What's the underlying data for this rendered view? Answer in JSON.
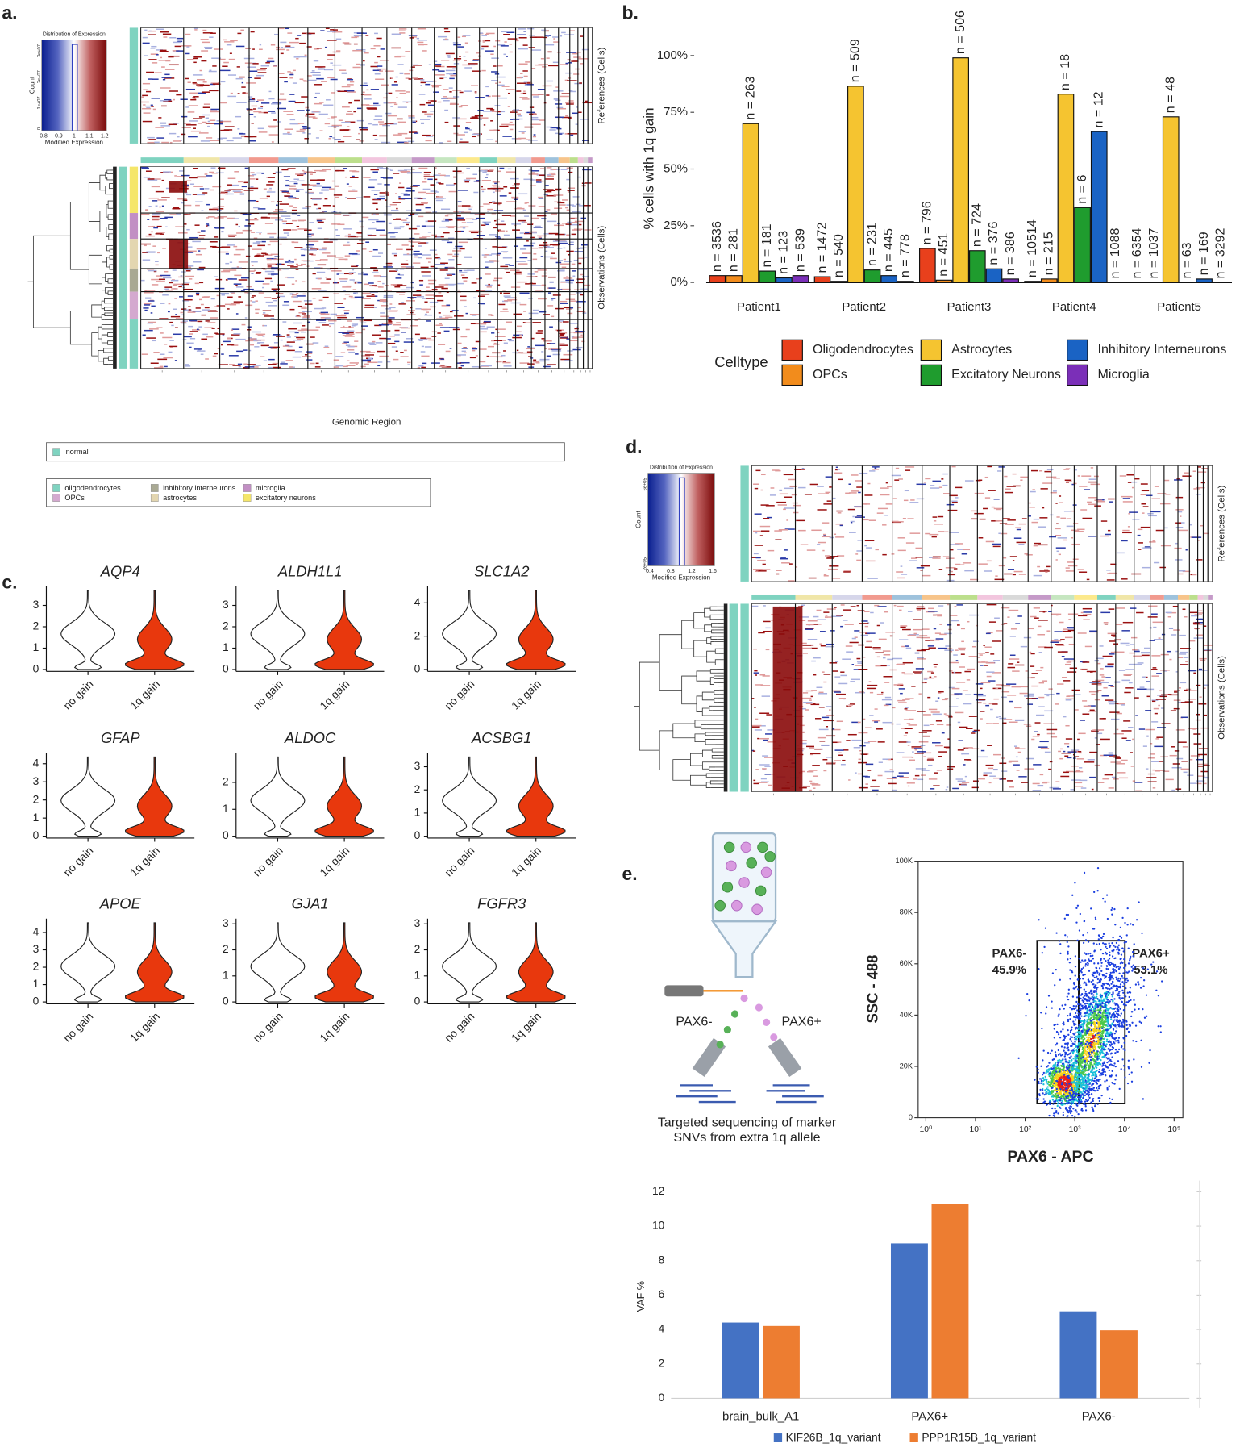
{
  "panel_labels": [
    "a.",
    "b.",
    "c.",
    "d.",
    "e."
  ],
  "heatmaps": [
    {
      "key_title": "Distribution of Expression",
      "key_ylabel": "Count",
      "key_xlabel": "Modified Expression",
      "key_xticks": [
        0.8,
        0.9,
        1,
        1.1,
        1.2
      ],
      "key_yticks": [
        "3e+07",
        "2e+07",
        "1e+07",
        "0"
      ],
      "ref_label": "References (Cells)",
      "obs_label": "Observations (Cells)",
      "xlabel": "Genomic Region"
    },
    {
      "key_title": "Distribution of Expression",
      "key_ylabel": "Count",
      "key_xlabel": "Modified Expression",
      "key_xticks": [
        0.4,
        0.8,
        1.2,
        1.6
      ],
      "key_yticks": [
        "6e+05",
        "2e+05"
      ],
      "ref_label": "References (Cells)",
      "obs_label": "Observations (Cells)"
    }
  ],
  "legends": {
    "references": {
      "names": [
        "normal"
      ],
      "colors": [
        "#7fd3c0"
      ]
    },
    "observations": {
      "names": [
        "oligodendrocytes",
        "OPCs",
        "inhibitory interneurons",
        "astrocytes",
        "microglia",
        "excitatory neurons"
      ],
      "colors": [
        "#7fd3c0",
        "#d4a9cf",
        "#a9a993",
        "#e3d6b0",
        "#c28fc4",
        "#f5e66a"
      ]
    }
  },
  "diagram": {
    "left": "PAX6-",
    "right": "PAX6+",
    "caption": [
      "Targeted sequencing of marker",
      "SNVs from extra 1q allele"
    ]
  },
  "chart_data": [
    {
      "type": "bar",
      "ylabel": "% cells with 1q gain",
      "categories": [
        "Patient1",
        "Patient2",
        "Patient3",
        "Patient4",
        "Patient5"
      ],
      "ylim": [
        0,
        100
      ],
      "yticks": [
        {
          "value": 0,
          "label": "0%"
        },
        {
          "value": 25,
          "label": "25%"
        },
        {
          "value": 50,
          "label": "50%"
        },
        {
          "value": 75,
          "label": "75%"
        },
        {
          "value": 100,
          "label": "100%"
        }
      ],
      "legend_title": "Celltype",
      "series": [
        {
          "name": "Oligodendrocytes",
          "color": "#e8401c",
          "values": [
            3,
            2.5,
            15,
            0.5,
            0
          ],
          "n_labels": [
            "n = 3536",
            "n = 1472",
            "n = 796",
            "n = 10514",
            "n = 6354"
          ]
        },
        {
          "name": "OPCs",
          "color": "#f28c1c",
          "values": [
            3,
            0.5,
            1,
            1.5,
            0
          ],
          "n_labels": [
            "n = 281",
            "n = 540",
            "n = 451",
            "n = 215",
            "n = 1037"
          ]
        },
        {
          "name": "Astrocytes",
          "color": "#f5c430",
          "values": [
            70,
            86.5,
            99,
            83,
            73
          ],
          "n_labels": [
            "n = 263",
            "n = 509",
            "n = 506",
            "n = 18",
            "n = 48"
          ]
        },
        {
          "name": "Excitatory Neurons",
          "color": "#1f9c2e",
          "values": [
            5,
            5.5,
            14,
            33,
            0
          ],
          "n_labels": [
            "n = 181",
            "n = 231",
            "n = 724",
            "n = 6",
            "n = 63"
          ]
        },
        {
          "name": "Inhibitory Interneurons",
          "color": "#1a63c4",
          "values": [
            2,
            3,
            6,
            66.5,
            1.5
          ],
          "n_labels": [
            "n = 123",
            "n = 445",
            "n = 376",
            "n = 12",
            "n = 169"
          ]
        },
        {
          "name": "Microglia",
          "color": "#7b2fb8",
          "values": [
            3,
            0.5,
            1.5,
            0,
            0
          ],
          "n_labels": [
            "n = 539",
            "n = 778",
            "n = 386",
            "n = 1088",
            "n = 3292"
          ]
        }
      ]
    },
    {
      "type": "violin",
      "categories": [
        "no gain",
        "1q gain"
      ],
      "colors": [
        "#ffffff",
        "#e8380d"
      ],
      "panels": [
        {
          "title": "AQP4",
          "ylim": [
            0,
            3.9
          ],
          "yticks": [
            0,
            1,
            2,
            3
          ]
        },
        {
          "title": "ALDH1L1",
          "ylim": [
            0,
            3.9
          ],
          "yticks": [
            0,
            1,
            2,
            3
          ]
        },
        {
          "title": "SLC1A2",
          "ylim": [
            0,
            5
          ],
          "yticks": [
            0,
            2,
            4
          ]
        },
        {
          "title": "GFAP",
          "ylim": [
            0,
            4.6
          ],
          "yticks": [
            0,
            1,
            2,
            3,
            4
          ]
        },
        {
          "title": "ALDOC",
          "ylim": [
            0,
            3.1
          ],
          "yticks": [
            0,
            1,
            2
          ]
        },
        {
          "title": "ACSBG1",
          "ylim": [
            0,
            3.6
          ],
          "yticks": [
            0,
            1,
            2,
            3
          ]
        },
        {
          "title": "APOE",
          "ylim": [
            0,
            4.8
          ],
          "yticks": [
            0,
            1,
            2,
            3,
            4
          ]
        },
        {
          "title": "GJA1",
          "ylim": [
            0,
            3.2
          ],
          "yticks": [
            0,
            1,
            2,
            3
          ]
        },
        {
          "title": "FGFR3",
          "ylim": [
            0,
            3.2
          ],
          "yticks": [
            0,
            1,
            2,
            3
          ]
        }
      ]
    },
    {
      "type": "density",
      "xlabel": "PAX6 - APC",
      "ylabel": "SSC - 488",
      "xscale": "log",
      "xlim": [
        0.7,
        150000
      ],
      "xticks": [
        {
          "value": 1,
          "label": "10⁰"
        },
        {
          "value": 10,
          "label": "10¹"
        },
        {
          "value": 100,
          "label": "10²"
        },
        {
          "value": 1000,
          "label": "10³"
        },
        {
          "value": 10000,
          "label": "10⁴"
        },
        {
          "value": 100000,
          "label": "10⁵"
        }
      ],
      "ylim": [
        0,
        100000
      ],
      "yticks": [
        0,
        {
          "value": 20000,
          "label": "20K"
        },
        {
          "value": 40000,
          "label": "40K"
        },
        {
          "value": 60000,
          "label": "60K"
        },
        {
          "value": 80000,
          "label": "80K"
        },
        {
          "value": 100000,
          "label": "100K"
        }
      ],
      "gates": [
        {
          "label": "PAX6-",
          "value": 45.9,
          "value_label": "45.9%",
          "x": [
            174,
            1200
          ],
          "y": [
            5550,
            69000
          ]
        },
        {
          "label": "PAX6+",
          "value": 53.1,
          "value_label": "53.1%",
          "x": [
            1200,
            10200
          ],
          "y": [
            5550,
            69000
          ]
        }
      ]
    },
    {
      "type": "bar",
      "ylabel": "VAF %",
      "categories": [
        "brain_bulk_A1",
        "PAX6+",
        "PAX6-"
      ],
      "ylim": [
        0,
        12
      ],
      "yticks": [
        0,
        2,
        4,
        6,
        8,
        10,
        12
      ],
      "series": [
        {
          "name": "KIF26B_1q_variant",
          "color": "#4472c4",
          "values": [
            4.4,
            9,
            5.05
          ]
        },
        {
          "name": "PPP1R15B_1q_variant",
          "color": "#ed7d31",
          "values": [
            4.2,
            11.3,
            3.95
          ]
        }
      ]
    }
  ]
}
